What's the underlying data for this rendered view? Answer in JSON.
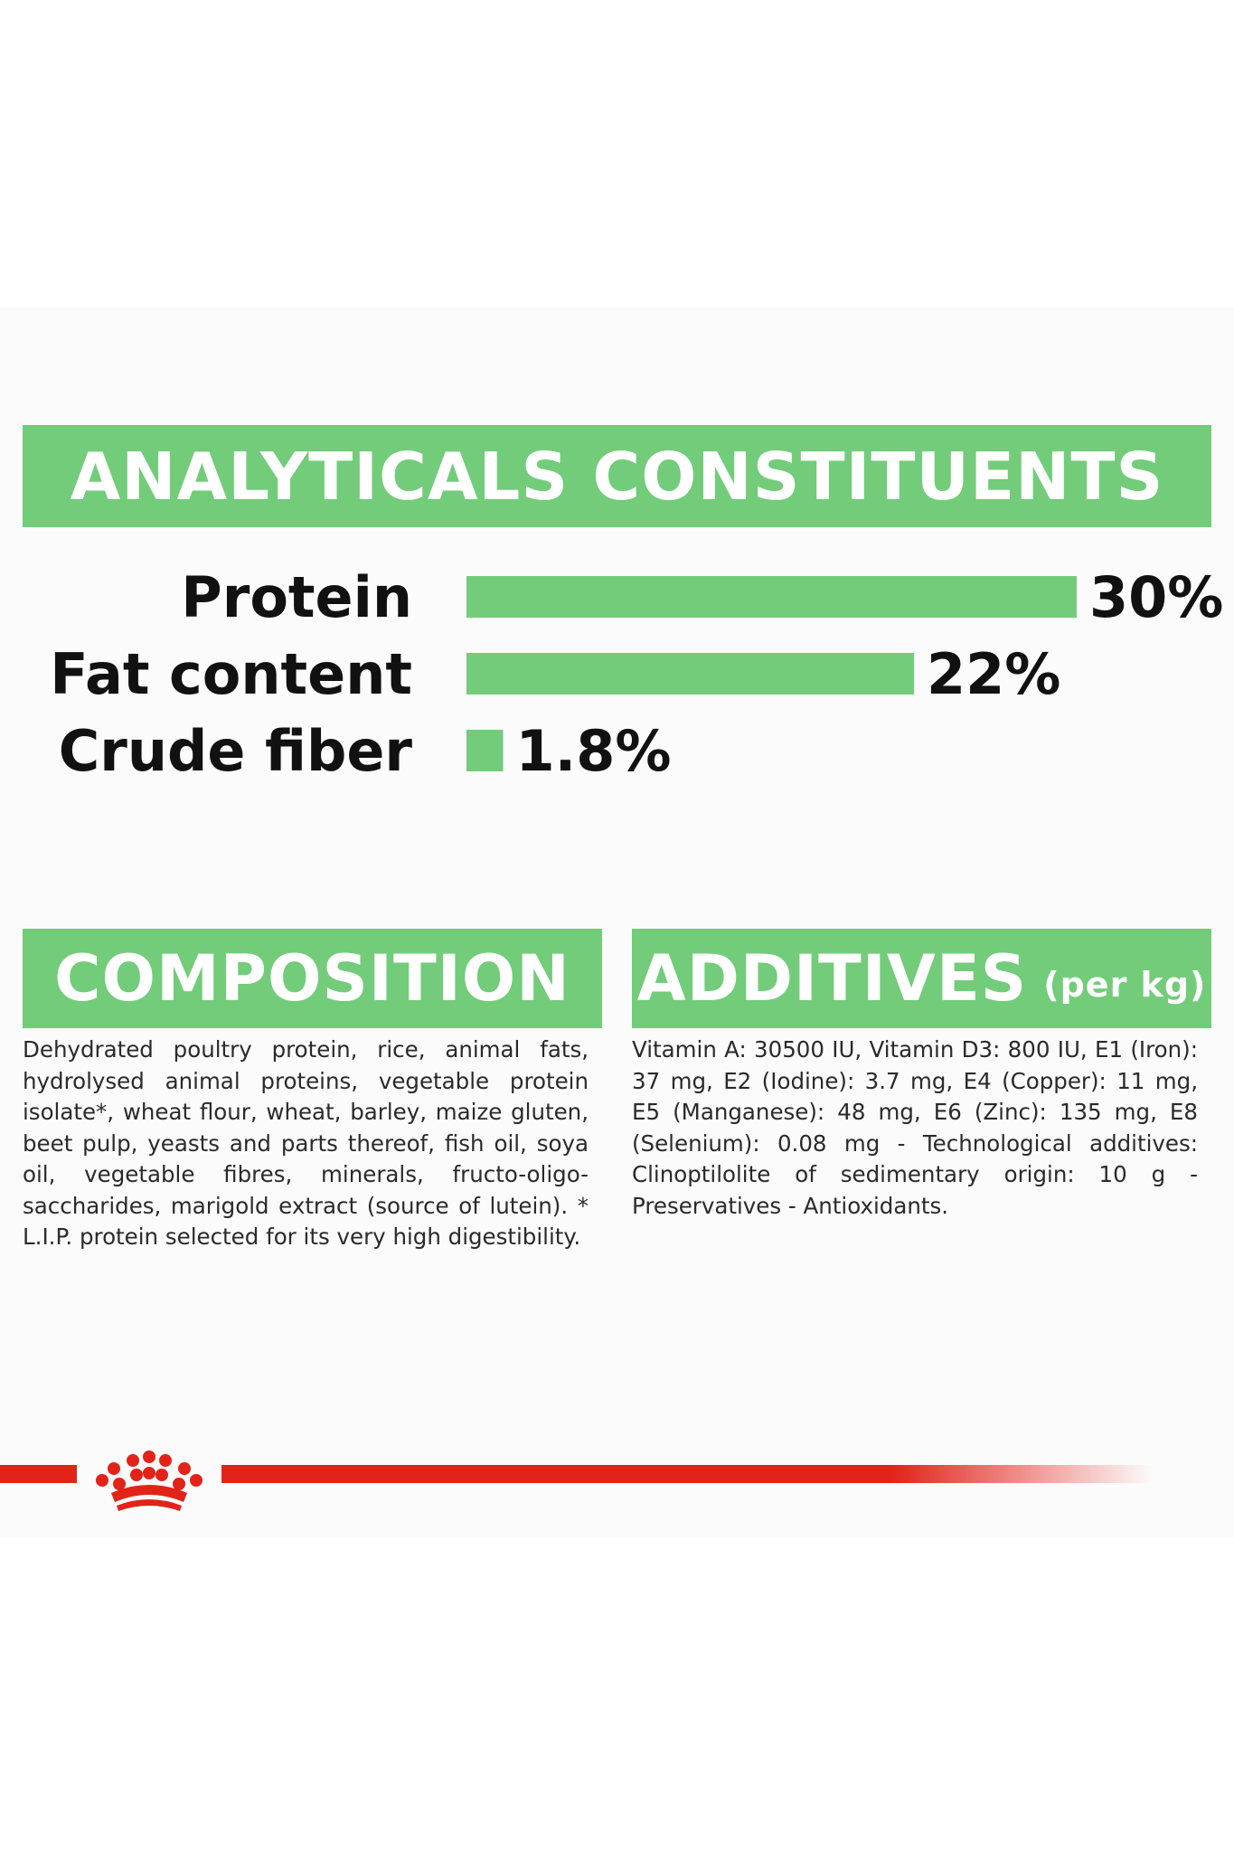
{
  "analytical": {
    "title": "ANALYTICALS CONSTITUENTS"
  },
  "chart_data": {
    "type": "bar",
    "orientation": "horizontal",
    "categories": [
      "Protein",
      "Fat content",
      "Crude fiber"
    ],
    "values": [
      30,
      22,
      1.8
    ],
    "value_labels": [
      "30%",
      "22%",
      "1.8%"
    ],
    "title": "ANALYTICALS CONSTITUENTS",
    "xlabel": "",
    "ylabel": "",
    "xlim": [
      0,
      30
    ],
    "grid": false,
    "bar_color": "#72cc7a"
  },
  "composition": {
    "title": "COMPOSITION",
    "text": "Dehydrated poultry protein, rice, animal fats, hydrolysed animal proteins, vegetable protein isolate*, wheat flour, wheat, barley, maize gluten, beet pulp, yeasts and parts thereof, fish oil, soya oil, vegetable fibres, minerals, fructo-oligo-saccharides, marigold extract (source of lutein). * L.I.P. protein selected for its very high digestibility."
  },
  "additives": {
    "title": "ADDITIVES",
    "unit": "(per kg)",
    "text": "Vitamin A: 30500 IU, Vitamin D3: 800 IU, E1 (Iron): 37 mg, E2 (Iodine): 3.7 mg, E4 (Copper): 11 mg, E5 (Manganese): 48 mg, E6 (Zinc): 135 mg, E8 (Selenium): 0.08 mg - Technological additives: Clinoptilolite of sedimentary origin: 10 g - Preservatives - Antioxidants."
  },
  "brand": {
    "logo_icon": "royal-canin-crown-icon",
    "accent_color": "#e2231a",
    "green_color": "#72cc7a"
  }
}
